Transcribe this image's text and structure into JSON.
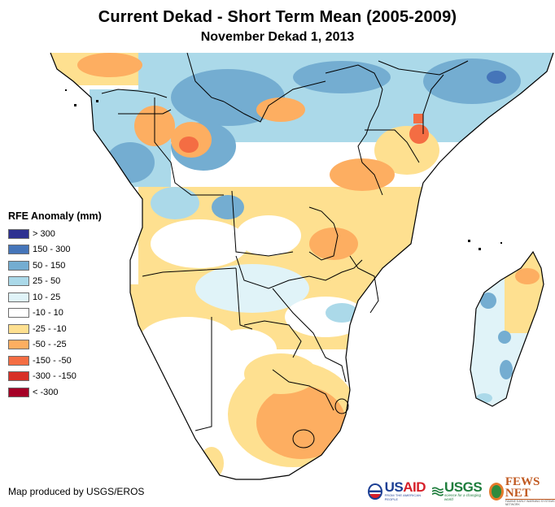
{
  "header": {
    "title": "Current Dekad - Short Term Mean (2005-2009)",
    "subtitle": "November Dekad 1, 2013"
  },
  "legend": {
    "title": "RFE Anomaly (mm)",
    "items": [
      {
        "label": "> 300",
        "color": "#2e3191"
      },
      {
        "label": "150 - 300",
        "color": "#4575b9"
      },
      {
        "label": "50 - 150",
        "color": "#74add1"
      },
      {
        "label": "25 - 50",
        "color": "#abd9e9"
      },
      {
        "label": "10 - 25",
        "color": "#e0f3f8"
      },
      {
        "label": "-10 - 10",
        "color": "#ffffff"
      },
      {
        "label": "-25 - -10",
        "color": "#fee090"
      },
      {
        "label": "-50 - -25",
        "color": "#fdae61"
      },
      {
        "label": "-150 - -50",
        "color": "#f46d43"
      },
      {
        "label": "-300 - -150",
        "color": "#d73027"
      },
      {
        "label": "< -300",
        "color": "#a50026"
      }
    ]
  },
  "footer": {
    "credit": "Map produced by USGS/EROS",
    "logos": {
      "usaid": {
        "us": "US",
        "aid": "AID",
        "tagline": "FROM THE AMERICAN PEOPLE"
      },
      "usgs": {
        "name": "USGS",
        "tagline": "science for a changing world"
      },
      "fewsnet": {
        "name": "FEWS NET",
        "tagline": "FAMINE EARLY WARNING SYSTEMS NETWORK"
      }
    }
  },
  "map": {
    "region": "Southern, Central and Eastern Africa with Madagascar",
    "regions_summary": [
      {
        "area": "Central Africa (Gabon, Congo, DRC north)",
        "anomaly_class": "10 - 150 (wetter)"
      },
      {
        "area": "Ethiopia / Somalia",
        "anomaly_class": "50 - 300 (wetter)"
      },
      {
        "area": "Kenya",
        "anomaly_class": "-150 - -50 (drier)"
      },
      {
        "area": "Tanzania",
        "anomaly_class": "-25 - -10 (drier)"
      },
      {
        "area": "Angola / Zambia",
        "anomaly_class": "-50 - -10 (drier)"
      },
      {
        "area": "South Africa",
        "anomaly_class": "-50 - -25 (drier)"
      },
      {
        "area": "Madagascar south",
        "anomaly_class": "10 - 150 (wetter)"
      },
      {
        "area": "Madagascar north",
        "anomaly_class": "-50 - -10 (drier)"
      }
    ]
  }
}
